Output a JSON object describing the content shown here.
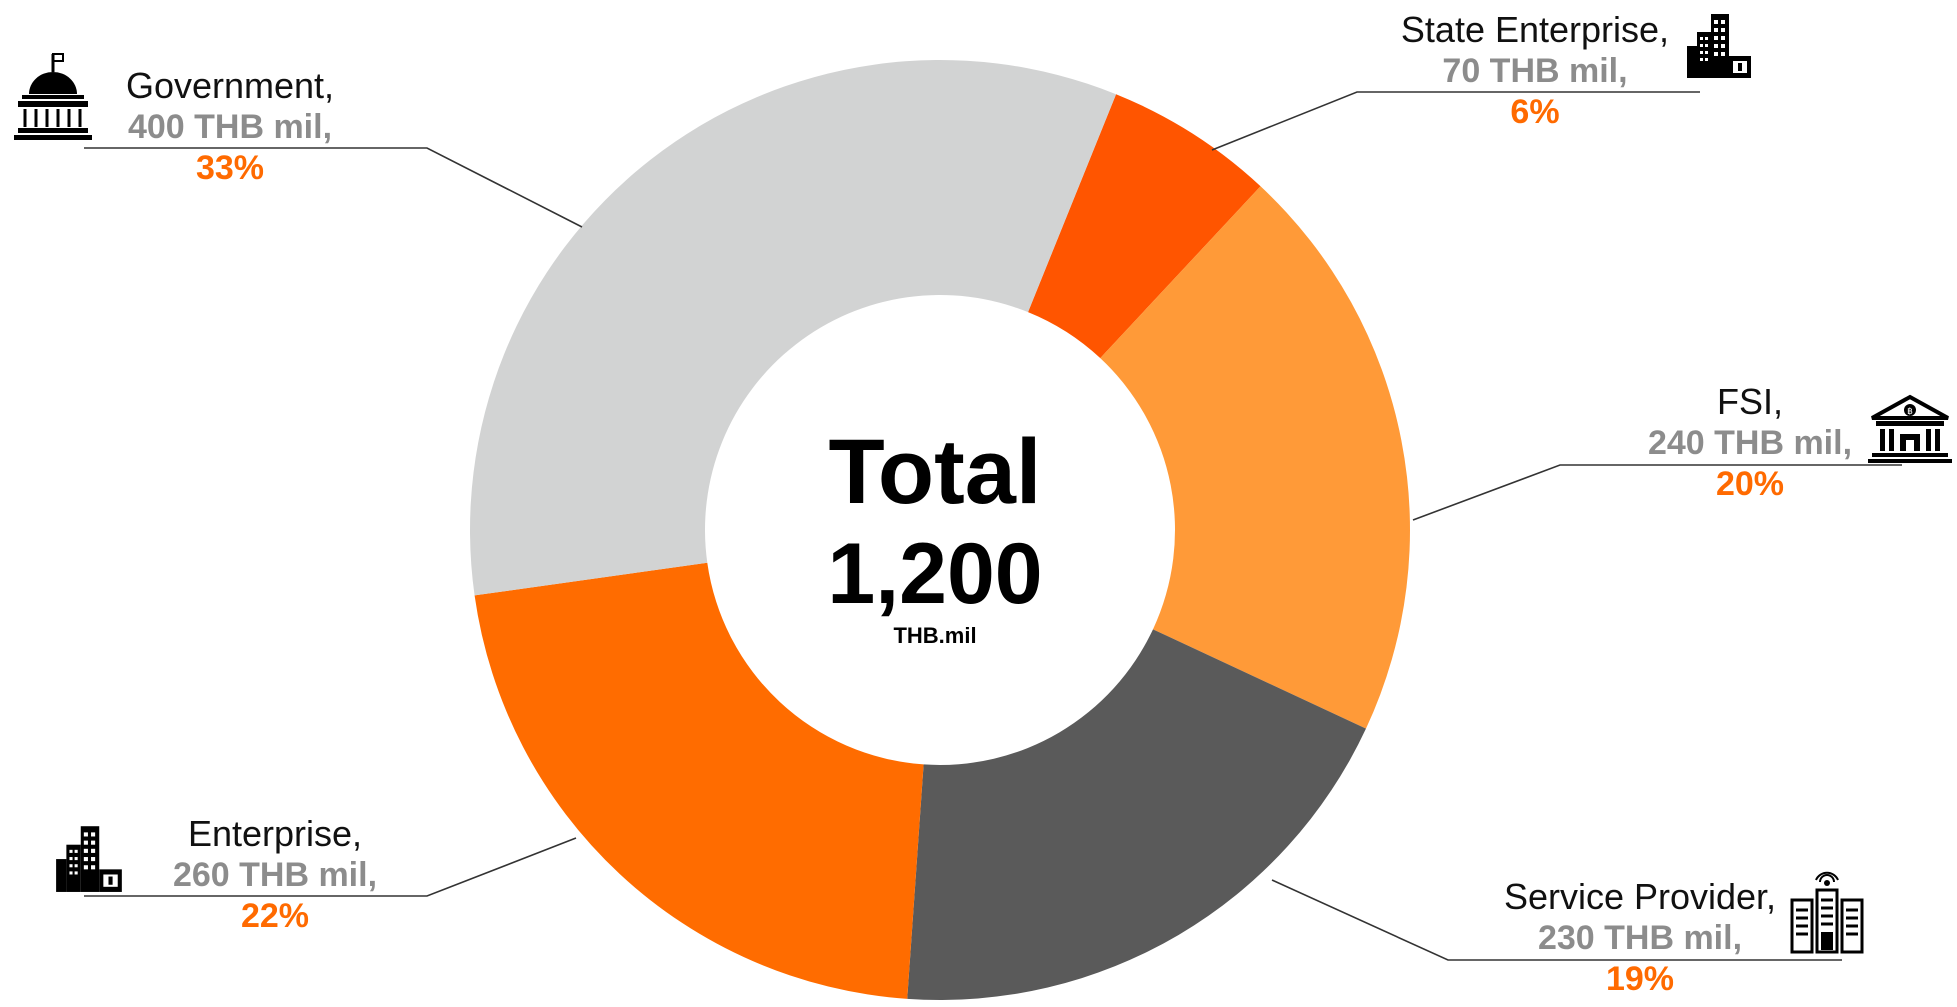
{
  "chart_data": {
    "type": "pie",
    "style": "donut",
    "center": {
      "line1": "Total",
      "line2": "1,200",
      "line3": "THB.mil"
    },
    "slices": [
      {
        "name": "State Enterprise,",
        "amount": "70 THB mil,",
        "percent": "6%",
        "value": 70,
        "color": "#ff5500",
        "icon": "office-buildings-icon"
      },
      {
        "name": "FSI,",
        "amount": "240 THB mil,",
        "percent": "20%",
        "value": 240,
        "color": "#ff9a38",
        "icon": "bank-icon"
      },
      {
        "name": "Service Provider,",
        "amount": "230 THB mil,",
        "percent": "19%",
        "value": 230,
        "color": "#5a5a5a",
        "icon": "server-tower-icon"
      },
      {
        "name": "Enterprise,",
        "amount": "260 THB mil,",
        "percent": "22%",
        "value": 260,
        "color": "#ff6c00",
        "icon": "office-buildings-icon"
      },
      {
        "name": "Government,",
        "amount": "400 THB mil,",
        "percent": "33%",
        "value": 400,
        "color": "#d2d3d3",
        "icon": "government-building-icon"
      }
    ]
  }
}
